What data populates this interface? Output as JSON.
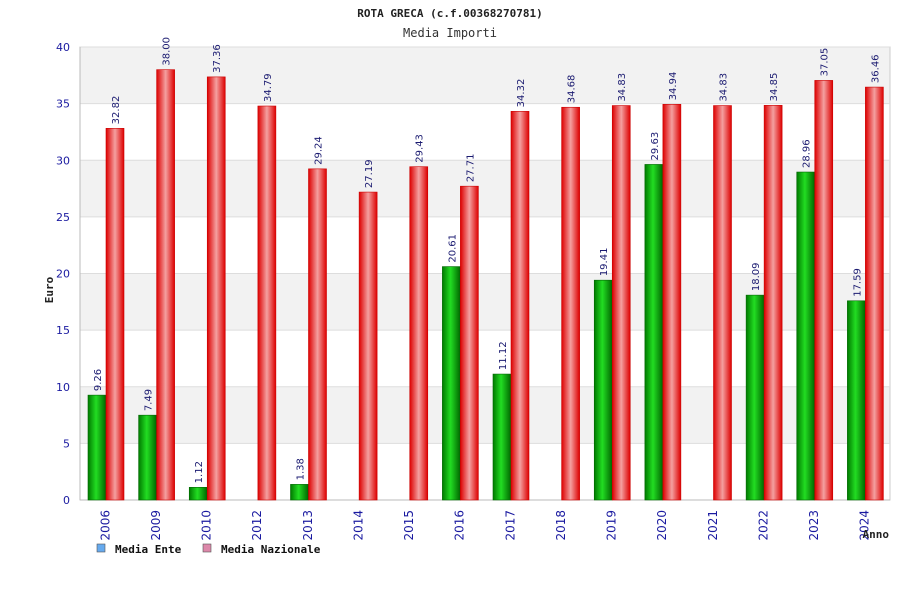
{
  "chart_data": {
    "type": "bar",
    "title": "ROTA GRECA (c.f.00368270781)",
    "subtitle": "Media Importi",
    "xlabel": "Anno",
    "ylabel": "Euro",
    "ylim": [
      0,
      40
    ],
    "yticks": [
      0,
      5,
      10,
      15,
      20,
      25,
      30,
      35,
      40
    ],
    "categories": [
      "2006",
      "2009",
      "2010",
      "2012",
      "2013",
      "2014",
      "2015",
      "2016",
      "2017",
      "2018",
      "2019",
      "2020",
      "2021",
      "2022",
      "2023",
      "2024"
    ],
    "series": [
      {
        "name": "Media Ente",
        "color": "#00bb00",
        "values": [
          9.26,
          7.49,
          1.12,
          null,
          1.38,
          null,
          null,
          20.61,
          11.12,
          null,
          19.41,
          29.63,
          null,
          18.09,
          28.96,
          17.59
        ],
        "labels": [
          "9.26",
          "7.49",
          "1.12",
          null,
          "1.38",
          null,
          null,
          "20.61",
          "11.12",
          null,
          "19.41",
          "29.63",
          null,
          "18.09",
          "28.96",
          "17.59"
        ]
      },
      {
        "name": "Media Nazionale",
        "color": "#ee1111",
        "values": [
          32.82,
          38.0,
          37.36,
          34.79,
          29.24,
          27.19,
          29.43,
          27.71,
          34.32,
          34.68,
          34.83,
          34.94,
          34.83,
          34.85,
          37.05,
          36.46
        ],
        "labels": [
          "32.82",
          "38.00",
          "37.36",
          "34.79",
          "29.24",
          "27.19",
          "29.43",
          "27.71",
          "34.32",
          "34.68",
          "34.83",
          "34.94",
          "34.83",
          "34.85",
          "37.05",
          "36.46"
        ]
      }
    ],
    "legend": {
      "position": "bottom-left",
      "items": [
        {
          "label": "Media Ente",
          "color": "#66aaee"
        },
        {
          "label": "Media Nazionale",
          "color": "#dd88aa"
        }
      ]
    },
    "grid": true
  }
}
